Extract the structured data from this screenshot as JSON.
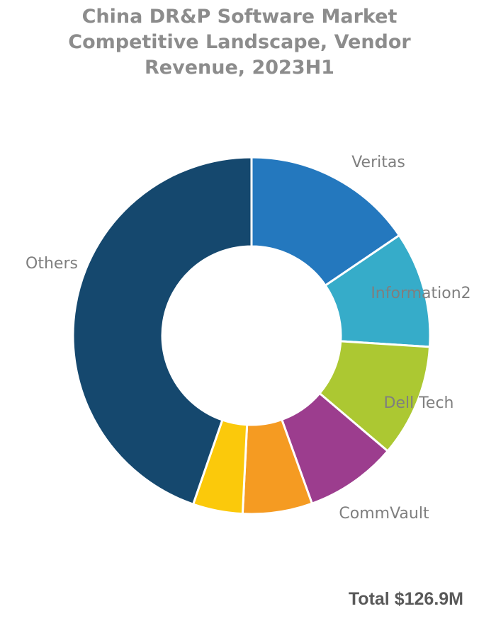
{
  "chart_data": {
    "type": "pie",
    "variant": "donut",
    "title_lines": [
      "China DR&P Software Market",
      "Competitive Landscape, Vendor",
      "Revenue, 2023H1"
    ],
    "start": "top (12 o'clock), clockwise",
    "slices": [
      {
        "label": "Veritas",
        "percent": 15.5,
        "color": "#2478be"
      },
      {
        "label": "Information2",
        "percent": 10.5,
        "color": "#36acc9"
      },
      {
        "label": "Dell Tech",
        "percent": 10.2,
        "color": "#acc832"
      },
      {
        "label": "CommVault",
        "percent": 8.3,
        "color": "#9c3d8e"
      },
      {
        "label": "",
        "percent": 6.3,
        "color": "#f59b22"
      },
      {
        "label": "",
        "percent": 4.5,
        "color": "#fbc90b"
      },
      {
        "label": "Others",
        "percent": 44.7,
        "color": "#15486e"
      }
    ],
    "separator_color": "#ffffff",
    "label_color": "#7f7f7f"
  },
  "footer": {
    "total": "Total $126.9M"
  }
}
